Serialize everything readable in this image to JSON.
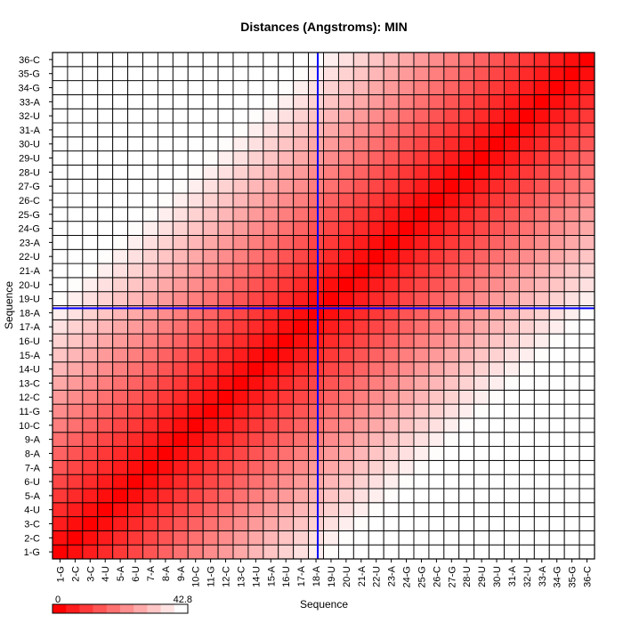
{
  "chart_data": {
    "type": "heatmap",
    "title": "Distances (Angstroms):  MIN",
    "xlabel": "Sequence",
    "ylabel": "Sequence",
    "categories": [
      "1-G",
      "2-C",
      "3-C",
      "4-U",
      "5-A",
      "6-U",
      "7-A",
      "8-A",
      "9-A",
      "10-C",
      "11-G",
      "12-C",
      "13-C",
      "14-U",
      "15-A",
      "16-U",
      "17-A",
      "18-A",
      "19-U",
      "20-U",
      "21-A",
      "22-U",
      "23-A",
      "24-G",
      "25-G",
      "26-C",
      "27-G",
      "28-U",
      "29-U",
      "30-U",
      "31-A",
      "32-U",
      "33-A",
      "34-G",
      "35-G",
      "36-C"
    ],
    "value_range": [
      0,
      42.8
    ],
    "legend": {
      "min_label": "0",
      "max_label": "42.8",
      "placement": "bottom-left"
    },
    "colormap": {
      "low": "#ff0000",
      "high": "#ffffff"
    },
    "grid": true,
    "crosshair": {
      "row": "18-A",
      "col": "18-A",
      "color": "#0000ff"
    },
    "value_model": "distance between residues i and j is approximately 2.35 * |i - j| Angstroms, capped at 42.8; values estimated from cell shading"
  }
}
